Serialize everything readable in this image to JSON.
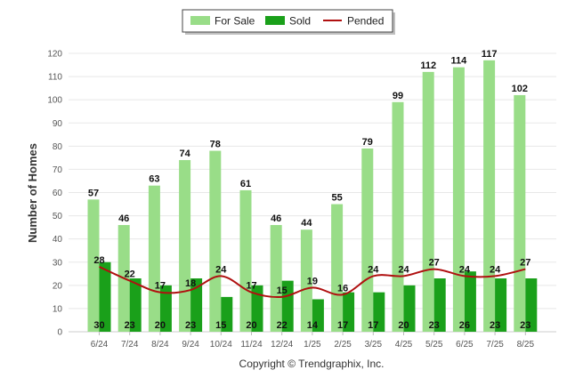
{
  "chart_data": {
    "type": "bar",
    "ylabel": "Number of Homes",
    "ylim": [
      0,
      120
    ],
    "yticks": [
      0,
      10,
      20,
      30,
      40,
      50,
      60,
      70,
      80,
      90,
      100,
      110,
      120
    ],
    "categories": [
      "6/24",
      "7/24",
      "8/24",
      "9/24",
      "10/24",
      "11/24",
      "12/24",
      "1/25",
      "2/25",
      "3/25",
      "4/25",
      "5/25",
      "6/25",
      "7/25",
      "8/25"
    ],
    "series": [
      {
        "name": "For Sale",
        "type": "bar",
        "color": "#99DD88",
        "values": [
          57,
          46,
          63,
          74,
          78,
          61,
          46,
          44,
          55,
          79,
          99,
          112,
          114,
          117,
          102
        ]
      },
      {
        "name": "Sold",
        "type": "bar",
        "color": "#1AA01A",
        "values": [
          30,
          23,
          20,
          23,
          15,
          20,
          22,
          14,
          17,
          17,
          20,
          23,
          26,
          23,
          23
        ]
      },
      {
        "name": "Pended",
        "type": "line",
        "color": "#B01010",
        "values": [
          28,
          22,
          17,
          18,
          24,
          17,
          15,
          19,
          16,
          24,
          24,
          27,
          24,
          24,
          27
        ]
      }
    ],
    "legend_position": "top-center",
    "grid": true,
    "footer": "Copyright © Trendgraphix, Inc."
  }
}
